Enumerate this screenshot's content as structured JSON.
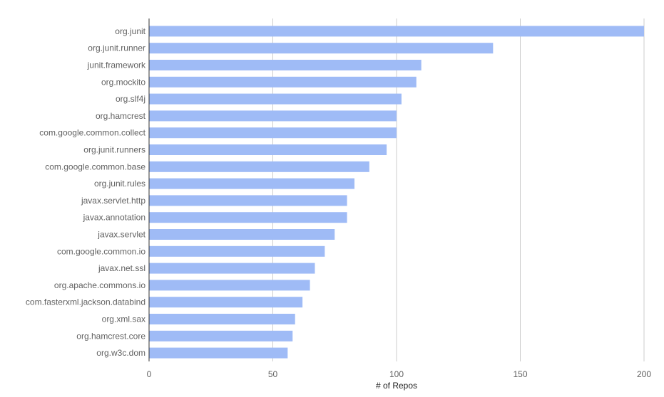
{
  "chart_data": {
    "type": "bar",
    "orientation": "horizontal",
    "categories": [
      "org.junit",
      "org.junit.runner",
      "junit.framework",
      "org.mockito",
      "org.slf4j",
      "org.hamcrest",
      "com.google.common.collect",
      "org.junit.runners",
      "com.google.common.base",
      "org.junit.rules",
      "javax.servlet.http",
      "javax.annotation",
      "javax.servlet",
      "com.google.common.io",
      "javax.net.ssl",
      "org.apache.commons.io",
      "com.fasterxml.jackson.databind",
      "org.xml.sax",
      "org.hamcrest.core",
      "org.w3c.dom"
    ],
    "values": [
      200,
      139,
      110,
      108,
      102,
      100,
      100,
      96,
      89,
      83,
      80,
      80,
      75,
      71,
      67,
      65,
      62,
      59,
      58,
      56
    ],
    "xlabel": "# of Repos",
    "ylabel": "",
    "xlim": [
      0,
      200
    ],
    "xticks": [
      0,
      50,
      100,
      150,
      200
    ],
    "grid": true,
    "legend": "none",
    "colors": {
      "bar": "#9fbbf6",
      "grid": "#cccccc",
      "axis": "#333333"
    }
  }
}
